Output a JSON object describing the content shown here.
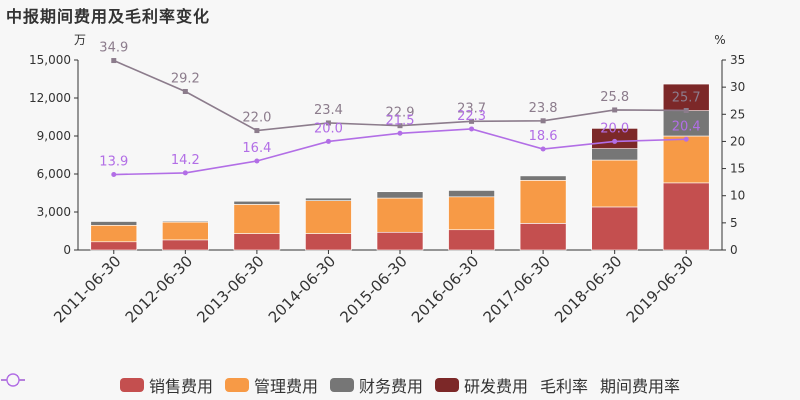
{
  "title": "中报期间费用及毛利率变化",
  "chart_data": {
    "type": "bar",
    "stacked": true,
    "left_axis_unit": "万",
    "right_axis_unit": "%",
    "left_ylim": [
      0,
      15000
    ],
    "left_ticks": [
      "0",
      "3,000",
      "6,000",
      "9,000",
      "12,000",
      "15,000"
    ],
    "left_tick_values": [
      0,
      3000,
      6000,
      9000,
      12000,
      15000
    ],
    "right_ylim": [
      0,
      35
    ],
    "right_ticks": [
      "0",
      "5",
      "10",
      "15",
      "20",
      "25",
      "30",
      "35"
    ],
    "right_tick_values": [
      0,
      5,
      10,
      15,
      20,
      25,
      30,
      35
    ],
    "categories": [
      "2011-06-30",
      "2012-06-30",
      "2013-06-30",
      "2014-06-30",
      "2015-06-30",
      "2016-06-30",
      "2017-06-30",
      "2018-06-30",
      "2019-06-30"
    ],
    "series": [
      {
        "name": "销售费用",
        "color": "#c44f4f",
        "values": [
          650,
          800,
          1300,
          1300,
          1400,
          1600,
          2100,
          3400,
          5300
        ]
      },
      {
        "name": "管理费用",
        "color": "#f79a46",
        "values": [
          1300,
          1400,
          2300,
          2600,
          2700,
          2600,
          3400,
          3700,
          3700
        ]
      },
      {
        "name": "财务费用",
        "color": "#767676",
        "values": [
          300,
          80,
          250,
          200,
          500,
          500,
          350,
          900,
          2000
        ]
      },
      {
        "name": "研发费用",
        "color": "#7c2828",
        "values": [
          0,
          0,
          0,
          0,
          0,
          0,
          0,
          1600,
          2100
        ]
      }
    ],
    "lines": [
      {
        "name": "毛利率",
        "color": "#8c7c8c",
        "marker": "square",
        "values": [
          34.9,
          29.2,
          22.0,
          23.4,
          22.9,
          23.7,
          23.8,
          25.8,
          25.7
        ],
        "labels": [
          "34.9",
          "29.2",
          "22.0",
          "23.4",
          "22.9",
          "23.7",
          "23.8",
          "25.8",
          "25.7"
        ]
      },
      {
        "name": "期间费用率",
        "color": "#b26ee6",
        "marker": "circle",
        "values": [
          13.9,
          14.2,
          16.4,
          20.0,
          21.5,
          22.3,
          18.6,
          20.0,
          20.4
        ],
        "labels": [
          "13.9",
          "14.2",
          "16.4",
          "20.0",
          "21.5",
          "22.3",
          "18.6",
          "20.0",
          "20.4"
        ]
      }
    ]
  }
}
